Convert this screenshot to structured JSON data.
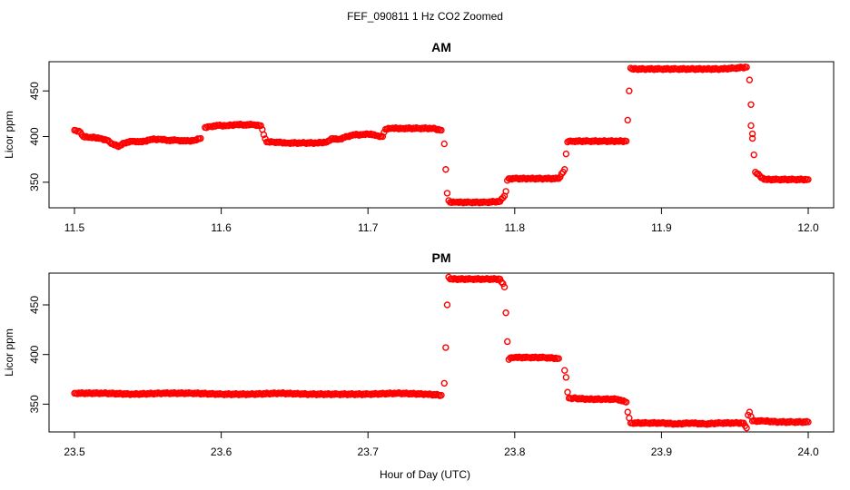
{
  "figure": {
    "title": "FEF_090811  1 Hz CO2 Zoomed",
    "xlabel": "Hour of Day (UTC)"
  },
  "colors": {
    "points": "#ff0000",
    "axis": "#000000",
    "background": "#ffffff"
  },
  "chart_data": [
    {
      "type": "scatter",
      "title": "AM",
      "xlabel": "Hour of Day (UTC)",
      "ylabel": "Licor ppm",
      "xlim": [
        11.5,
        12.0
      ],
      "ylim": [
        322,
        482
      ],
      "xticks": [
        "11.5",
        "11.6",
        "11.7",
        "11.8",
        "11.9",
        "12.0"
      ],
      "yticks": [
        "350",
        "400",
        "450"
      ],
      "grid": false,
      "marker": "open-circle",
      "series": [
        {
          "x": [
            11.5,
            11.503,
            11.506,
            11.51,
            11.514,
            11.518,
            11.522,
            11.526,
            11.53,
            11.534,
            11.54,
            11.546,
            11.552,
            11.558,
            11.564,
            11.57,
            11.576,
            11.582,
            11.586,
            11.589,
            11.592,
            11.598,
            11.604,
            11.61,
            11.616,
            11.622,
            11.627,
            11.629,
            11.631,
            11.636,
            11.645,
            11.655,
            11.665,
            11.672,
            11.676,
            11.68,
            11.684,
            11.69,
            11.696,
            11.702,
            11.706,
            11.71,
            11.712,
            11.716,
            11.724,
            11.734,
            11.744,
            11.75,
            11.752,
            11.753,
            11.754,
            11.755,
            11.756,
            11.76,
            11.77,
            11.78,
            11.79,
            11.793,
            11.794,
            11.795,
            11.796,
            11.8,
            11.81,
            11.82,
            11.83,
            11.834,
            11.835,
            11.836,
            11.837,
            11.84,
            11.85,
            11.86,
            11.87,
            11.876,
            11.877,
            11.878,
            11.879,
            11.88,
            11.89,
            11.9,
            11.91,
            11.92,
            11.93,
            11.94,
            11.95,
            11.958,
            11.96,
            11.961,
            11.961,
            11.962,
            11.962,
            11.963,
            11.964,
            11.97,
            11.98,
            11.99,
            12.0
          ],
          "y": [
            407,
            406,
            400,
            399,
            399,
            398,
            396,
            392,
            389,
            393,
            395,
            394,
            397,
            397,
            396,
            396,
            395,
            396,
            398,
            410,
            411,
            412,
            412,
            413,
            413,
            413,
            412,
            402,
            394,
            394,
            393,
            393,
            393,
            394,
            398,
            397,
            399,
            402,
            402,
            403,
            401,
            400,
            408,
            409,
            409,
            409,
            409,
            407,
            392,
            364,
            338,
            330,
            328,
            328,
            328,
            328,
            329,
            335,
            340,
            352,
            354,
            354,
            354,
            354,
            354,
            364,
            381,
            394,
            395,
            395,
            395,
            395,
            395,
            395,
            418,
            450,
            475,
            474,
            474,
            474,
            474,
            474,
            474,
            474,
            475,
            476,
            462,
            435,
            412,
            403,
            398,
            380,
            361,
            353,
            353,
            353,
            353
          ]
        }
      ]
    },
    {
      "type": "scatter",
      "title": "PM",
      "xlabel": "Hour of Day (UTC)",
      "ylabel": "Licor ppm",
      "xlim": [
        23.5,
        24.0
      ],
      "ylim": [
        322,
        482
      ],
      "xticks": [
        "23.5",
        "23.6",
        "23.7",
        "23.8",
        "23.9",
        "24.0"
      ],
      "yticks": [
        "350",
        "400",
        "450"
      ],
      "grid": false,
      "marker": "open-circle",
      "series": [
        {
          "x": [
            23.5,
            23.52,
            23.54,
            23.56,
            23.58,
            23.6,
            23.62,
            23.64,
            23.66,
            23.68,
            23.7,
            23.72,
            23.74,
            23.75,
            23.752,
            23.753,
            23.754,
            23.755,
            23.756,
            23.76,
            23.77,
            23.78,
            23.79,
            23.793,
            23.794,
            23.795,
            23.796,
            23.798,
            23.8,
            23.81,
            23.82,
            23.83,
            23.834,
            23.835,
            23.836,
            23.837,
            23.84,
            23.85,
            23.86,
            23.87,
            23.876,
            23.877,
            23.878,
            23.879,
            23.88,
            23.89,
            23.9,
            23.91,
            23.92,
            23.93,
            23.94,
            23.95,
            23.956,
            23.958,
            23.959,
            23.96,
            23.962,
            23.97,
            23.98,
            23.99,
            24.0
          ],
          "y": [
            361,
            361,
            360,
            361,
            361,
            360,
            360,
            361,
            360,
            360,
            360,
            361,
            360,
            359,
            371,
            407,
            450,
            478,
            476,
            476,
            476,
            476,
            476,
            468,
            442,
            413,
            395,
            397,
            397,
            397,
            397,
            396,
            384,
            377,
            362,
            356,
            356,
            355,
            355,
            355,
            352,
            342,
            336,
            331,
            331,
            331,
            331,
            330,
            331,
            330,
            331,
            331,
            331,
            326,
            339,
            342,
            333,
            333,
            332,
            332,
            332
          ]
        }
      ]
    }
  ]
}
